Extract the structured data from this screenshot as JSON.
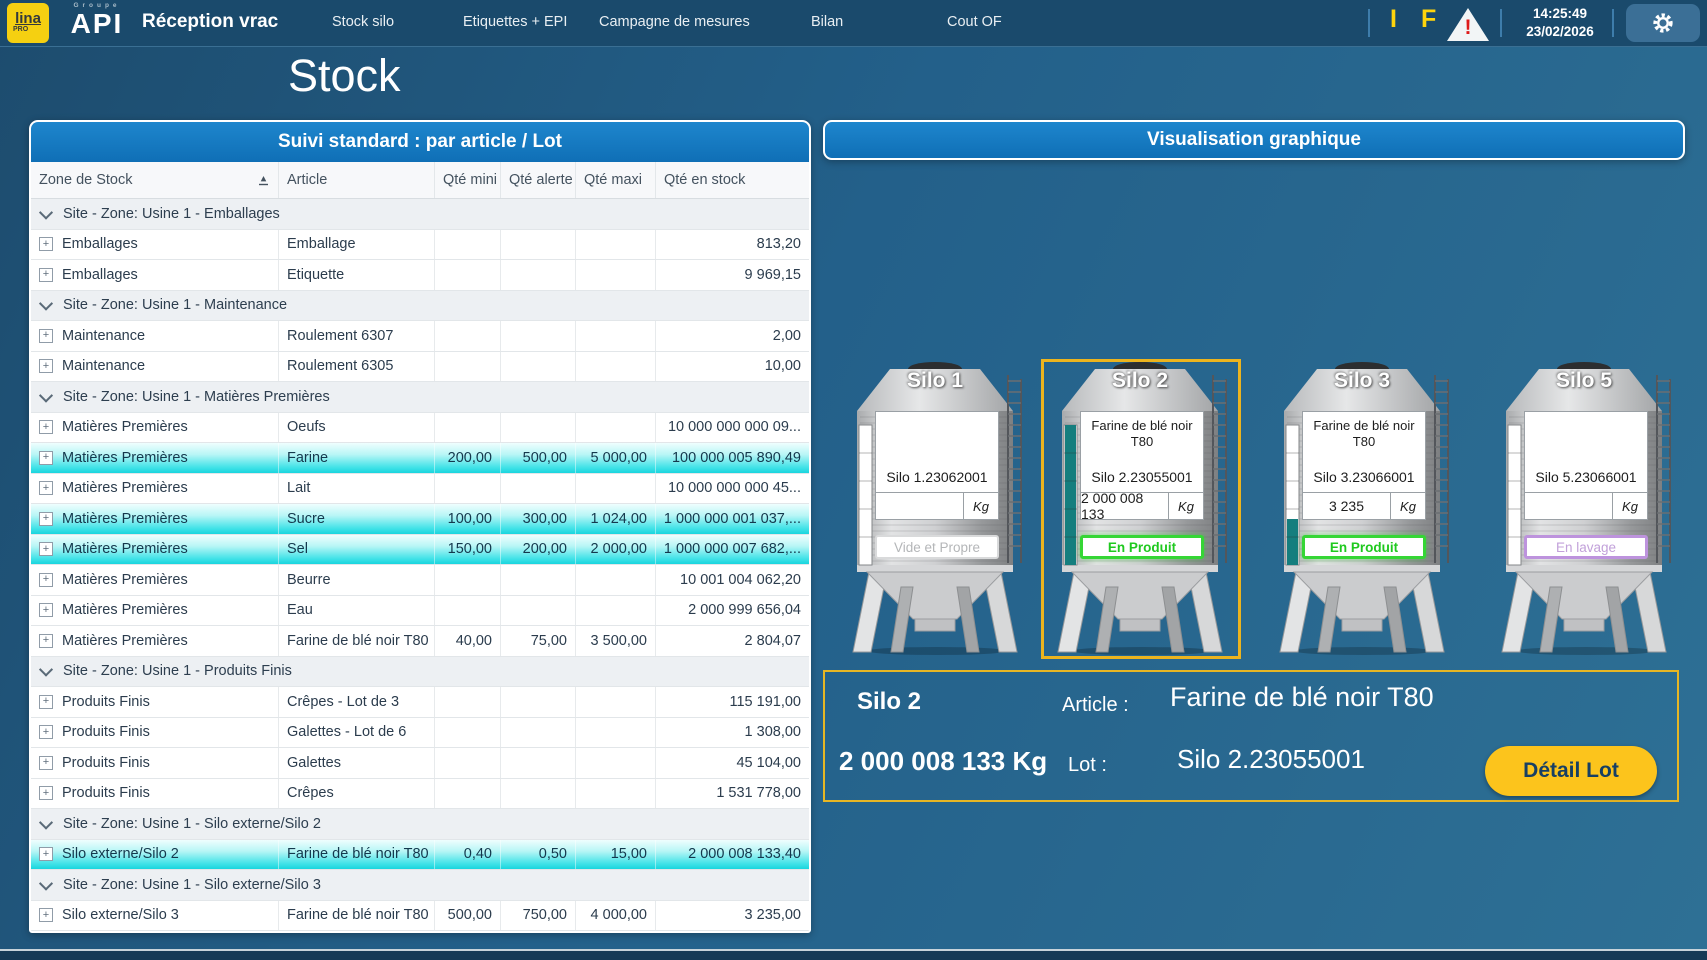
{
  "topbar": {
    "logo_lina": "lina",
    "logo_lina_sub": "PRO",
    "logo_groupe": "Groupe",
    "logo_api": "API",
    "app_title": "Réception vrac",
    "nav": [
      "Stock silo",
      "Etiquettes + EPI",
      "Campagne de mesures",
      "Bilan",
      "Cout OF"
    ],
    "indicator_i": "I",
    "indicator_f": "F",
    "warning_mark": "!",
    "time": "14:25:49",
    "date": "23/02/2026"
  },
  "page_title": "Stock",
  "left_panel": {
    "title": "Suivi standard : par article / Lot",
    "columns": [
      "Zone de Stock",
      "Article",
      "Qté mini",
      "Qté alerte",
      "Qté maxi",
      "Qté en stock"
    ],
    "rows": [
      {
        "type": "group",
        "label": "Site - Zone: Usine 1 - Emballages"
      },
      {
        "type": "data",
        "zone": "Emballages",
        "article": "Emballage",
        "mini": "",
        "alerte": "",
        "maxi": "",
        "stock": "813,20",
        "highlight": false
      },
      {
        "type": "data",
        "zone": "Emballages",
        "article": "Etiquette",
        "mini": "",
        "alerte": "",
        "maxi": "",
        "stock": "9 969,15",
        "highlight": false
      },
      {
        "type": "group",
        "label": "Site - Zone: Usine 1 - Maintenance"
      },
      {
        "type": "data",
        "zone": "Maintenance",
        "article": "Roulement 6307",
        "mini": "",
        "alerte": "",
        "maxi": "",
        "stock": "2,00",
        "highlight": false
      },
      {
        "type": "data",
        "zone": "Maintenance",
        "article": "Roulement 6305",
        "mini": "",
        "alerte": "",
        "maxi": "",
        "stock": "10,00",
        "highlight": false
      },
      {
        "type": "group",
        "label": "Site - Zone: Usine 1 - Matières Premières"
      },
      {
        "type": "data",
        "zone": "Matières Premières",
        "article": "Oeufs",
        "mini": "",
        "alerte": "",
        "maxi": "",
        "stock": "10 000 000 000 09...",
        "highlight": false
      },
      {
        "type": "data",
        "zone": "Matières Premières",
        "article": "Farine",
        "mini": "200,00",
        "alerte": "500,00",
        "maxi": "5 000,00",
        "stock": "100 000 005 890,49",
        "highlight": true
      },
      {
        "type": "data",
        "zone": "Matières Premières",
        "article": "Lait",
        "mini": "",
        "alerte": "",
        "maxi": "",
        "stock": "10 000 000 000 45...",
        "highlight": false
      },
      {
        "type": "data",
        "zone": "Matières Premières",
        "article": "Sucre",
        "mini": "100,00",
        "alerte": "300,00",
        "maxi": "1 024,00",
        "stock": "1 000 000 001 037,...",
        "highlight": true
      },
      {
        "type": "data",
        "zone": "Matières Premières",
        "article": "Sel",
        "mini": "150,00",
        "alerte": "200,00",
        "maxi": "2 000,00",
        "stock": "1 000 000 007 682,...",
        "highlight": true
      },
      {
        "type": "data",
        "zone": "Matières Premières",
        "article": "Beurre",
        "mini": "",
        "alerte": "",
        "maxi": "",
        "stock": "10 001 004 062,20",
        "highlight": false
      },
      {
        "type": "data",
        "zone": "Matières Premières",
        "article": "Eau",
        "mini": "",
        "alerte": "",
        "maxi": "",
        "stock": "2 000 999 656,04",
        "highlight": false
      },
      {
        "type": "data",
        "zone": "Matières Premières",
        "article": "Farine de blé noir T80",
        "mini": "40,00",
        "alerte": "75,00",
        "maxi": "3 500,00",
        "stock": "2 804,07",
        "highlight": false
      },
      {
        "type": "group",
        "label": "Site - Zone: Usine 1 - Produits Finis"
      },
      {
        "type": "data",
        "zone": "Produits Finis",
        "article": "Crêpes - Lot de 3",
        "mini": "",
        "alerte": "",
        "maxi": "",
        "stock": "115 191,00",
        "highlight": false
      },
      {
        "type": "data",
        "zone": "Produits Finis",
        "article": "Galettes - Lot de 6",
        "mini": "",
        "alerte": "",
        "maxi": "",
        "stock": "1 308,00",
        "highlight": false
      },
      {
        "type": "data",
        "zone": "Produits Finis",
        "article": "Galettes",
        "mini": "",
        "alerte": "",
        "maxi": "",
        "stock": "45 104,00",
        "highlight": false
      },
      {
        "type": "data",
        "zone": "Produits Finis",
        "article": "Crêpes",
        "mini": "",
        "alerte": "",
        "maxi": "",
        "stock": "1 531 778,00",
        "highlight": false
      },
      {
        "type": "group",
        "label": "Site - Zone: Usine 1 - Silo externe/Silo 2"
      },
      {
        "type": "data",
        "zone": "Silo externe/Silo 2",
        "article": "Farine de blé noir T80",
        "mini": "0,40",
        "alerte": "0,50",
        "maxi": "15,00",
        "stock": "2 000 008 133,40",
        "highlight": true
      },
      {
        "type": "group",
        "label": "Site - Zone: Usine 1 - Silo externe/Silo 3"
      },
      {
        "type": "data",
        "zone": "Silo externe/Silo 3",
        "article": "Farine de blé noir T80",
        "mini": "500,00",
        "alerte": "750,00",
        "maxi": "4 000,00",
        "stock": "3 235,00",
        "highlight": false
      }
    ]
  },
  "right_panel": {
    "title": "Visualisation graphique",
    "silos": [
      {
        "name": "Silo 1",
        "article": "",
        "lot": "Silo 1.23062001",
        "qty": "",
        "unit": "Kg",
        "status": "Vide et Propre",
        "status_type": "vide",
        "level": 0,
        "selected": false
      },
      {
        "name": "Silo 2",
        "article": "Farine de blé noir T80",
        "lot": "Silo 2.23055001",
        "qty": "2 000 008 133",
        "unit": "Kg",
        "status": "En Produit",
        "status_type": "produit",
        "level": 100,
        "selected": true
      },
      {
        "name": "Silo 3",
        "article": "Farine de blé noir T80",
        "lot": "Silo 3.23066001",
        "qty": "3 235",
        "unit": "Kg",
        "status": "En Produit",
        "status_type": "produit",
        "level": 33,
        "selected": false
      },
      {
        "name": "Silo 5",
        "article": "",
        "lot": "Silo 5.23066001",
        "qty": "",
        "unit": "Kg",
        "status": "En lavage",
        "status_type": "lavage",
        "level": 0,
        "selected": false
      }
    ],
    "detail": {
      "silo_name": "Silo 2",
      "article_label": "Article :",
      "article": "Farine de blé noir T80",
      "qty": "2 000 008 133 Kg",
      "lot_label": "Lot :",
      "lot": "Silo 2.23055001",
      "button_label": "Détail Lot"
    }
  },
  "colors": {
    "header_blue": "#1478bf",
    "highlight_cyan": "#19d5de",
    "selection_yellow": "#ecb41e",
    "button_yellow": "#fcc41c",
    "status_green": "#1fc91f",
    "status_gray": "#b4b6b8",
    "status_purple": "#bd93dd",
    "gauge_teal": "#157e7e",
    "indicator_yellow": "#ffd40c",
    "warning_red": "#de1a1a"
  }
}
